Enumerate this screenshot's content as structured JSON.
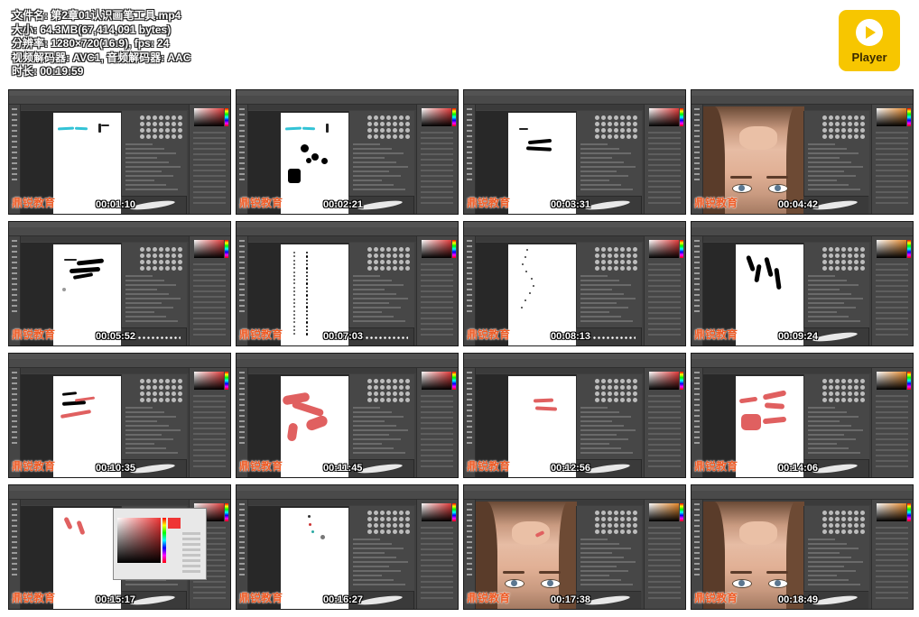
{
  "file_info": {
    "lines": [
      "文件名: 第2章01认识画笔工具.mp4",
      "大小: 64.3MB(67,414,091 bytes)",
      "分辨率: 1280×720(16:9), fps: 24",
      "视频解码器: AVC1, 音频解码器: AAC",
      "时长: 00:19:59"
    ]
  },
  "player_logo": {
    "label": "Player"
  },
  "watermark": "鼎锐教育",
  "thumbnails": [
    {
      "time": "00:01:10",
      "scene": "canvas"
    },
    {
      "time": "00:02:21",
      "scene": "canvas"
    },
    {
      "time": "00:03:31",
      "scene": "canvas"
    },
    {
      "time": "00:04:42",
      "scene": "photo"
    },
    {
      "time": "00:05:52",
      "scene": "canvas"
    },
    {
      "time": "00:07:03",
      "scene": "canvas"
    },
    {
      "time": "00:08:13",
      "scene": "canvas"
    },
    {
      "time": "00:09:24",
      "scene": "canvas"
    },
    {
      "time": "00:10:35",
      "scene": "canvas"
    },
    {
      "time": "00:11:45",
      "scene": "canvas"
    },
    {
      "time": "00:12:56",
      "scene": "canvas"
    },
    {
      "time": "00:14:06",
      "scene": "canvas"
    },
    {
      "time": "00:15:17",
      "scene": "dialog"
    },
    {
      "time": "00:16:27",
      "scene": "canvas"
    },
    {
      "time": "00:17:38",
      "scene": "photo"
    },
    {
      "time": "00:18:49",
      "scene": "photo"
    }
  ],
  "colors": {
    "brush_black": "#111111",
    "brush_red": "#e06060",
    "brush_teal": "#33c3d6",
    "watermark": "#ee5a24",
    "logo_yellow": "#f7c600"
  }
}
